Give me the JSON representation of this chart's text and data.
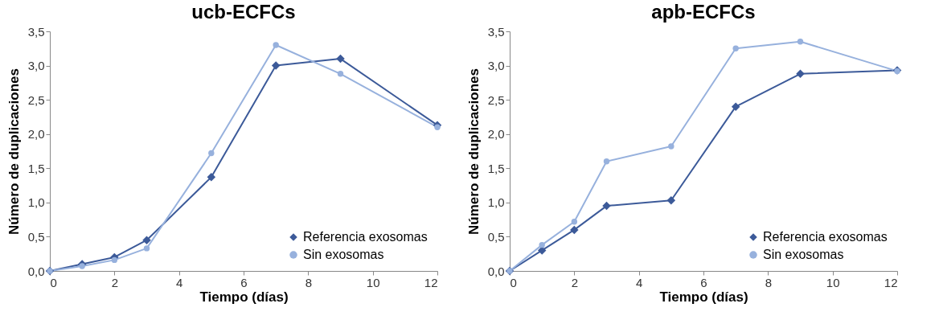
{
  "chart_data": [
    {
      "type": "line",
      "title": "ucb-ECFCs",
      "xlabel": "Tiempo (días)",
      "ylabel": "Número de duplicaciones",
      "x": [
        0,
        1,
        2,
        3,
        5,
        7,
        9,
        12
      ],
      "series": [
        {
          "name": "Referencia exosomas",
          "color": "#3c5a99",
          "marker": "diamond",
          "values": [
            0,
            0.1,
            0.2,
            0.45,
            1.37,
            3.0,
            3.1,
            2.13
          ]
        },
        {
          "name": "Sin exosomas",
          "color": "#97b1dd",
          "marker": "circle",
          "values": [
            0,
            0.07,
            0.16,
            0.33,
            1.72,
            3.3,
            2.88,
            2.1
          ]
        }
      ],
      "xlim": [
        0,
        12
      ],
      "xticks": [
        0,
        2,
        4,
        6,
        8,
        10,
        12
      ],
      "ylim": [
        0,
        3.5
      ],
      "yticks": [
        {
          "value": 0,
          "label": "0,0"
        },
        {
          "value": 0.5,
          "label": "0,5"
        },
        {
          "value": 1,
          "label": "1,0"
        },
        {
          "value": 1.5,
          "label": "1,5"
        },
        {
          "value": 2,
          "label": "2,0"
        },
        {
          "value": 2.5,
          "label": "2,5"
        },
        {
          "value": 3,
          "label": "3,0"
        },
        {
          "value": 3.5,
          "label": "3,5"
        }
      ],
      "grid": false,
      "legend": "bottom right"
    },
    {
      "type": "line",
      "title": "apb-ECFCs",
      "xlabel": "Tiempo (días)",
      "ylabel": "Número de duplicaciones",
      "x": [
        0,
        1,
        2,
        3,
        5,
        7,
        9,
        12
      ],
      "series": [
        {
          "name": "Referencia exosomas",
          "color": "#3c5a99",
          "marker": "diamond",
          "values": [
            0,
            0.3,
            0.6,
            0.95,
            1.03,
            2.4,
            2.88,
            2.93
          ]
        },
        {
          "name": "Sin exosomas",
          "color": "#97b1dd",
          "marker": "circle",
          "values": [
            0,
            0.38,
            0.72,
            1.6,
            1.82,
            3.25,
            3.35,
            2.92
          ]
        }
      ],
      "xlim": [
        0,
        12
      ],
      "xticks": [
        0,
        2,
        4,
        6,
        8,
        10,
        12
      ],
      "ylim": [
        0,
        3.5
      ],
      "yticks": [
        {
          "value": 0,
          "label": "0,0"
        },
        {
          "value": 0.5,
          "label": "0,5"
        },
        {
          "value": 1,
          "label": "1,0"
        },
        {
          "value": 1.5,
          "label": "1,5"
        },
        {
          "value": 2,
          "label": "2,0"
        },
        {
          "value": 2.5,
          "label": "2,5"
        },
        {
          "value": 3,
          "label": "3,0"
        },
        {
          "value": 3.5,
          "label": "3,5"
        }
      ],
      "grid": false,
      "legend": "bottom right"
    }
  ]
}
